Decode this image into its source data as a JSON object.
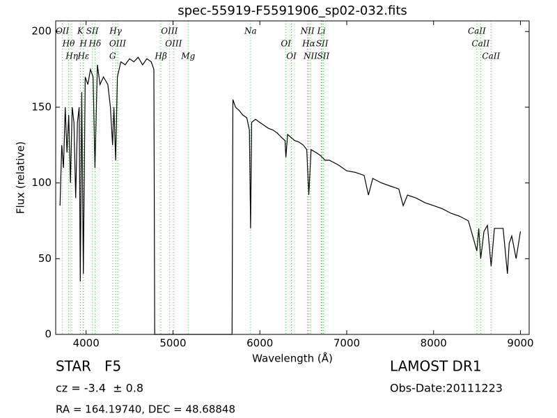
{
  "chart_data": {
    "type": "line",
    "title": "spec-55919-F5591906_sp02-032.fits",
    "x_label": "Wavelength (Å)",
    "y_label": "Flux (relative)",
    "xlim": [
      3650,
      9100
    ],
    "ylim": [
      0,
      207
    ],
    "xticks": [
      4000,
      5000,
      6000,
      7000,
      8000,
      9000
    ],
    "yticks": [
      0,
      50,
      100,
      150,
      200
    ],
    "series": [
      {
        "color": "#000000",
        "x": [
          3700,
          3720,
          3740,
          3760,
          3780,
          3800,
          3820,
          3840,
          3860,
          3880,
          3900,
          3920,
          3933,
          3950,
          3968,
          3990,
          4020,
          4050,
          4080,
          4102,
          4130,
          4160,
          4200,
          4250,
          4280,
          4305,
          4320,
          4340,
          4360,
          4400,
          4450,
          4500,
          4550,
          4600,
          4650,
          4700,
          4750,
          4780,
          4790,
          5680,
          5690,
          5720,
          5760,
          5800,
          5850,
          5880,
          5893,
          5905,
          5950,
          6000,
          6050,
          6100,
          6150,
          6200,
          6250,
          6290,
          6300,
          6320,
          6400,
          6450,
          6500,
          6540,
          6563,
          6590,
          6650,
          6700,
          6750,
          6800,
          6900,
          7000,
          7100,
          7200,
          7250,
          7300,
          7400,
          7500,
          7600,
          7650,
          7700,
          7800,
          7900,
          8000,
          8100,
          8200,
          8300,
          8400,
          8450,
          8498,
          8520,
          8542,
          8580,
          8620,
          8662,
          8700,
          8800,
          8850,
          8870,
          8900,
          8950,
          9000
        ],
        "values": [
          85,
          125,
          110,
          150,
          120,
          145,
          100,
          150,
          140,
          90,
          140,
          150,
          35,
          160,
          40,
          170,
          165,
          175,
          170,
          110,
          178,
          165,
          170,
          165,
          150,
          125,
          150,
          115,
          170,
          180,
          178,
          182,
          180,
          183,
          178,
          182,
          180,
          175,
          0,
          0,
          155,
          150,
          148,
          145,
          143,
          135,
          70,
          140,
          142,
          140,
          138,
          136,
          135,
          133,
          130,
          128,
          117,
          132,
          128,
          127,
          125,
          122,
          92,
          122,
          120,
          118,
          115,
          115,
          112,
          108,
          107,
          105,
          92,
          103,
          100,
          98,
          96,
          85,
          92,
          90,
          87,
          85,
          83,
          80,
          78,
          75,
          65,
          55,
          70,
          50,
          68,
          72,
          45,
          70,
          70,
          40,
          60,
          65,
          50,
          68
        ]
      }
    ],
    "line_markers": [
      {
        "label": "OII",
        "x": 3727
      },
      {
        "label": "Hθ",
        "x": 3798
      },
      {
        "label": "Hη",
        "x": 3835
      },
      {
        "label": "K",
        "x": 3934
      },
      {
        "label": "H",
        "x": 3968
      },
      {
        "label": "Hε",
        "x": 3970
      },
      {
        "label": "SII",
        "x": 4072
      },
      {
        "label": "Hδ",
        "x": 4102
      },
      {
        "label": "G",
        "x": 4305
      },
      {
        "label": "Hγ",
        "x": 4340
      },
      {
        "label": "OIII",
        "x": 4363
      },
      {
        "label": "Hβ",
        "x": 4861
      },
      {
        "label": "OIII",
        "x": 4959
      },
      {
        "label": "OIII",
        "x": 5007
      },
      {
        "label": "Mg",
        "x": 5175
      },
      {
        "label": "Na",
        "x": 5893
      },
      {
        "label": "OI",
        "x": 6300
      },
      {
        "label": "OI",
        "x": 6363
      },
      {
        "label": "NII",
        "x": 6548
      },
      {
        "label": "Hα",
        "x": 6563
      },
      {
        "label": "NII",
        "x": 6583
      },
      {
        "label": "Li",
        "x": 6708
      },
      {
        "label": "SII",
        "x": 6717
      },
      {
        "label": "SII",
        "x": 6731
      },
      {
        "label": "CaII",
        "x": 8498
      },
      {
        "label": "CaII",
        "x": 8542
      },
      {
        "label": "CaII",
        "x": 8662
      }
    ],
    "marker_color": "#5cb85c",
    "annotations": [
      "STAR   F5",
      "LAMOST DR1",
      "cz = -3.4  ± 0.8",
      "Obs-Date:20111223",
      "RA = 164.19740, DEC = 48.68848"
    ]
  }
}
